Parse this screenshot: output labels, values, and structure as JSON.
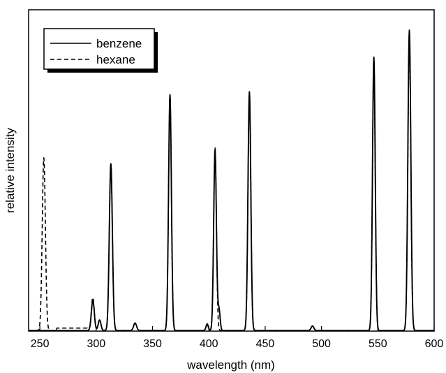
{
  "chart_data": {
    "type": "line",
    "xlabel": "wavelength (nm)",
    "ylabel": "relative intensity",
    "xlim": [
      240,
      600
    ],
    "ylim": [
      0,
      1
    ],
    "xticks": [
      250,
      300,
      350,
      400,
      450,
      500,
      550,
      600
    ],
    "yticks_shown": false,
    "grid": false,
    "legend_position": "top-left",
    "series": [
      {
        "name": "benzene",
        "style": "solid",
        "color": "#000000",
        "peaks": [
          {
            "x": 297,
            "y": 0.1,
            "w": 1.3
          },
          {
            "x": 303,
            "y": 0.035,
            "w": 1.2
          },
          {
            "x": 313,
            "y": 0.555,
            "w": 1.35
          },
          {
            "x": 334.5,
            "y": 0.025,
            "w": 1.3
          },
          {
            "x": 365.5,
            "y": 0.785,
            "w": 1.25
          },
          {
            "x": 398.5,
            "y": 0.022,
            "w": 1.0
          },
          {
            "x": 405.5,
            "y": 0.6,
            "w": 1.2
          },
          {
            "x": 409,
            "y": 0.07,
            "w": 1.0
          },
          {
            "x": 436,
            "y": 0.795,
            "w": 1.25
          },
          {
            "x": 492,
            "y": 0.015,
            "w": 1.2
          },
          {
            "x": 546.5,
            "y": 0.91,
            "w": 1.2
          },
          {
            "x": 578,
            "y": 1.0,
            "w": 1.3
          }
        ]
      },
      {
        "name": "hexane",
        "style": "dashed",
        "color": "#000000",
        "peaks": [
          {
            "x": 253.5,
            "y": 0.575,
            "w": 1.4
          },
          {
            "x": 297,
            "y": 0.11,
            "w": 1.3
          },
          {
            "x": 303,
            "y": 0.035,
            "w": 1.2
          },
          {
            "x": 313,
            "y": 0.555,
            "w": 1.35
          },
          {
            "x": 334.5,
            "y": 0.025,
            "w": 1.3
          },
          {
            "x": 365.5,
            "y": 0.78,
            "w": 1.25
          },
          {
            "x": 398.5,
            "y": 0.02,
            "w": 1.0
          },
          {
            "x": 405.5,
            "y": 0.61,
            "w": 1.2
          },
          {
            "x": 436,
            "y": 0.785,
            "w": 1.25
          },
          {
            "x": 492,
            "y": 0.015,
            "w": 1.2
          },
          {
            "x": 546.5,
            "y": 0.9,
            "w": 1.2
          },
          {
            "x": 578,
            "y": 0.98,
            "w": 1.3
          }
        ],
        "baseline_segments": [
          {
            "from": 265,
            "to": 292,
            "y": 0.01
          }
        ]
      }
    ]
  }
}
